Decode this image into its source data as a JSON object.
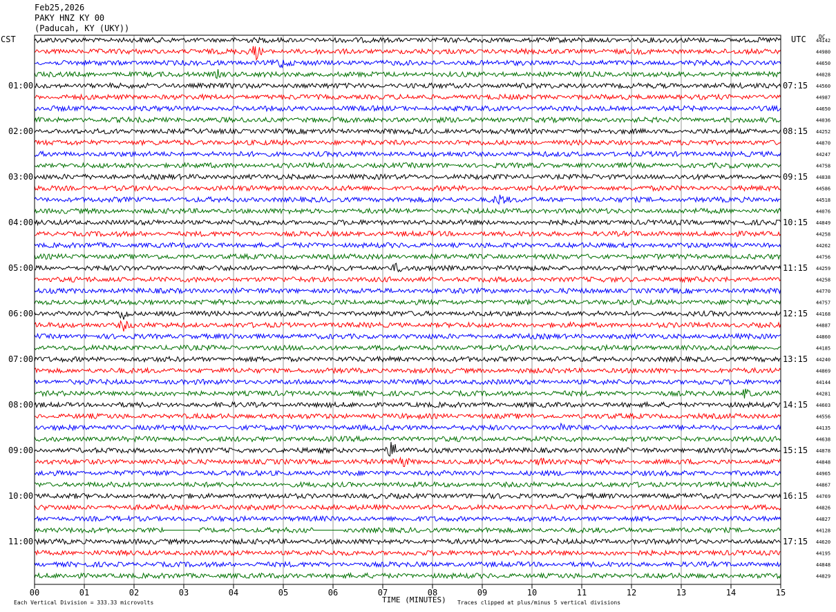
{
  "header": {
    "date": "Feb25,2026",
    "station": "PAKY HNZ KY 00",
    "location": "(Paducah, KY (UKY))"
  },
  "left_tz": "CST",
  "right_tz": "UTC",
  "dc_label": "DC",
  "chart_data": {
    "type": "line",
    "title": "",
    "xlabel": "TIME (MINUTES)",
    "ylabel": "",
    "x_ticks": [
      "00",
      "01",
      "02",
      "03",
      "04",
      "05",
      "06",
      "07",
      "08",
      "09",
      "10",
      "11",
      "12",
      "13",
      "14",
      "15"
    ],
    "xlim": [
      0,
      15
    ],
    "trace_count": 48,
    "trace_minutes": 15,
    "trace_colors": [
      "#000000",
      "#ff0000",
      "#0000ff",
      "#007000"
    ],
    "left_hour_labels": [
      "01:00",
      "02:00",
      "03:00",
      "04:00",
      "05:00",
      "06:00",
      "07:00",
      "08:00",
      "09:00",
      "10:00",
      "11:00"
    ],
    "right_hour_labels": [
      "07:15",
      "08:15",
      "09:15",
      "10:15",
      "11:15",
      "12:15",
      "13:15",
      "14:15",
      "15:15",
      "16:15",
      "17:15"
    ],
    "hour_label_trace_index": [
      4,
      8,
      12,
      16,
      20,
      24,
      28,
      32,
      36,
      40,
      44
    ],
    "dc_offsets": [
      "44142",
      "44980",
      "44650",
      "44028",
      "44560",
      "44987",
      "44650",
      "44036",
      "44252",
      "44870",
      "44247",
      "44758",
      "44838",
      "44586",
      "44518",
      "44076",
      "44849",
      "44258",
      "44262",
      "44756",
      "44259",
      "44258",
      "44770",
      "44757",
      "44168",
      "44887",
      "44860",
      "44185",
      "44240",
      "44869",
      "44144",
      "44281",
      "44603",
      "44556",
      "44135",
      "44638",
      "44878",
      "44848",
      "44965",
      "44867",
      "44769",
      "44826",
      "44827",
      "44128",
      "44620",
      "44195",
      "44848",
      "44829"
    ],
    "events": [
      {
        "trace": 1,
        "minute": 4.45,
        "amplitude": 1.2
      },
      {
        "trace": 2,
        "minute": 4.95,
        "amplitude": 0.8
      },
      {
        "trace": 3,
        "minute": 3.7,
        "amplitude": 0.6
      },
      {
        "trace": 14,
        "minute": 9.35,
        "amplitude": 0.9
      },
      {
        "trace": 20,
        "minute": 7.3,
        "amplitude": 0.7
      },
      {
        "trace": 24,
        "minute": 1.8,
        "amplitude": 1.0
      },
      {
        "trace": 25,
        "minute": 1.8,
        "amplitude": 0.8
      },
      {
        "trace": 31,
        "minute": 14.3,
        "amplitude": 0.8
      },
      {
        "trace": 34,
        "minute": 10.6,
        "amplitude": 0.7
      },
      {
        "trace": 36,
        "minute": 7.2,
        "amplitude": 1.6
      },
      {
        "trace": 37,
        "minute": 7.4,
        "amplitude": 0.8
      },
      {
        "trace": 37,
        "minute": 10.2,
        "amplitude": 0.8
      }
    ],
    "flat_segments": [
      {
        "trace": 43,
        "from_minute": 2.6,
        "to_minute": 3.3
      },
      {
        "trace": 43,
        "from_minute": 5.6,
        "to_minute": 6.2
      }
    ]
  },
  "footer": {
    "scale": "Each Vertical Division =  333.33 microvolts",
    "clip": "Traces clipped at plus/minus 5 vertical divisions"
  }
}
